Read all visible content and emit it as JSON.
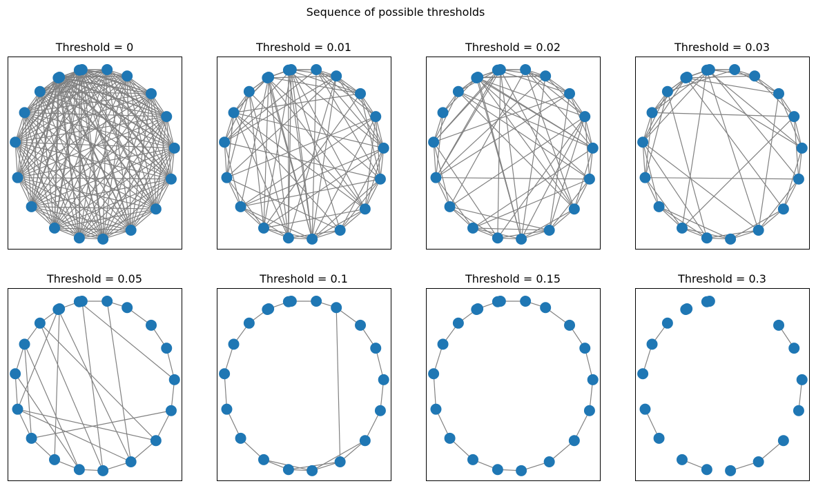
{
  "figure": {
    "title": "Sequence of possible thresholds",
    "node_color": "#1f77b4",
    "edge_color": "#808080",
    "background": "#ffffff"
  },
  "panels": [
    {
      "title": "Threshold = 0",
      "threshold": 0,
      "edge_density": "complete"
    },
    {
      "title": "Threshold = 0.01",
      "threshold": 0.01,
      "edge_density": "dense"
    },
    {
      "title": "Threshold = 0.02",
      "threshold": 0.02,
      "edge_density": "dense"
    },
    {
      "title": "Threshold = 0.03",
      "threshold": 0.03,
      "edge_density": "moderate"
    },
    {
      "title": "Threshold = 0.05",
      "threshold": 0.05,
      "edge_density": "sparse"
    },
    {
      "title": "Threshold = 0.1",
      "threshold": 0.1,
      "edge_density": "ring-plus-one"
    },
    {
      "title": "Threshold = 0.15",
      "threshold": 0.15,
      "edge_density": "ring"
    },
    {
      "title": "Threshold = 0.3",
      "threshold": 0.3,
      "edge_density": "partial-ring"
    }
  ]
}
